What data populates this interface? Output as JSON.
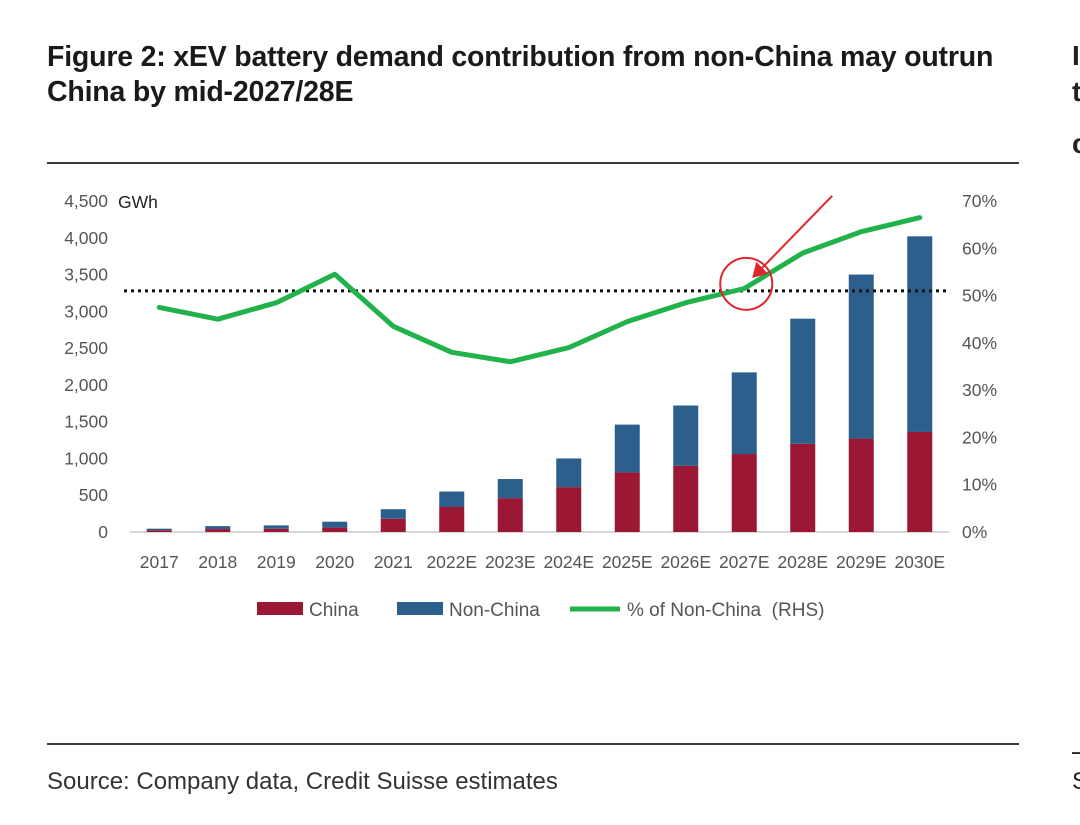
{
  "figure": {
    "title": "Figure 2: xEV battery demand contribution from non-China may outrun China by mid-2027/28E",
    "source": "Source: Company data, Credit Suisse estimates"
  },
  "next_figure": {
    "fragments": [
      "I",
      "t",
      "c",
      "–",
      "S"
    ]
  },
  "colors": {
    "china": "#9b1733",
    "non_china": "#2c5f8c",
    "pct_line": "#22b24c",
    "annotation": "#e0262b",
    "reference_line": "#111111"
  },
  "chart_data": {
    "type": "bar",
    "stacked": true,
    "categories": [
      "2017",
      "2018",
      "2019",
      "2020",
      "2021",
      "2022E",
      "2023E",
      "2024E",
      "2025E",
      "2026E",
      "2027E",
      "2028E",
      "2029E",
      "2030E"
    ],
    "series": [
      {
        "name": "China",
        "axis": "left",
        "values": [
          25,
          40,
          45,
          60,
          180,
          340,
          460,
          610,
          810,
          900,
          1060,
          1200,
          1270,
          1360
        ]
      },
      {
        "name": "Non-China",
        "axis": "left",
        "values": [
          20,
          40,
          45,
          80,
          130,
          210,
          260,
          390,
          650,
          820,
          1110,
          1700,
          2230,
          2660
        ]
      },
      {
        "name": "% of Non-China  (RHS)",
        "type": "line",
        "axis": "right",
        "values": [
          47.5,
          45.0,
          48.5,
          54.5,
          43.5,
          38.0,
          36.0,
          39.0,
          44.5,
          48.5,
          51.5,
          59.0,
          63.5,
          66.5
        ]
      }
    ],
    "y_left": {
      "unit": "GWh",
      "min": 0,
      "max": 4500,
      "ticks": [
        "0",
        "500",
        "1,000",
        "1,500",
        "2,000",
        "2,500",
        "3,000",
        "3,500",
        "4,000",
        "4,500"
      ]
    },
    "y_right": {
      "min": 0,
      "max": 70,
      "ticks": [
        "0%",
        "10%",
        "20%",
        "30%",
        "40%",
        "50%",
        "60%",
        "70%"
      ]
    },
    "reference_line": {
      "axis": "right",
      "value": 51,
      "style": "dotted"
    },
    "annotation": {
      "type": "circle-with-arrow",
      "category": "2027E",
      "value": 51
    },
    "legend": {
      "placement": "bottom-center"
    },
    "grid": false
  }
}
